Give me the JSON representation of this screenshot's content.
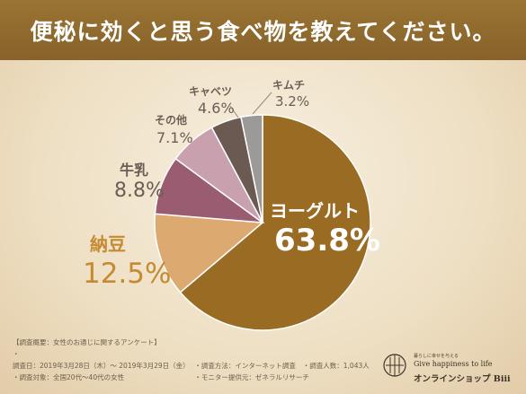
{
  "header": {
    "title": "便秘に効くと思う食べ物を教えてください。"
  },
  "chart_data": {
    "type": "pie",
    "title": "便秘に効くと思う食べ物を教えてください。",
    "slices": [
      {
        "label": "ヨーグルト",
        "value": 63.8,
        "display": "63.8%",
        "color": "#9a6b23"
      },
      {
        "label": "納豆",
        "value": 12.5,
        "display": "12.5%",
        "color": "#dcaa70"
      },
      {
        "label": "牛乳",
        "value": 8.8,
        "display": "8.8%",
        "color": "#9a5c70"
      },
      {
        "label": "その他",
        "value": 7.1,
        "display": "7.1%",
        "color": "#c9a0ae"
      },
      {
        "label": "キャベツ",
        "value": 4.6,
        "display": "4.6%",
        "color": "#6a5a52"
      },
      {
        "label": "キムチ",
        "value": 3.2,
        "display": "3.2%",
        "color": "#9c9a99"
      }
    ]
  },
  "footer": {
    "heading": "【調査概要：女性のお通じに関するアンケート】",
    "period": "調査日：2019年3月28日（木）〜 2019年3月29日（金）",
    "method": "調査方法：インターネット調査",
    "respondents": "調査人数：1,043人",
    "target": "調査対象：全国20代〜40代の女性",
    "provider": "モニター提供元：ゼネラルリサーチ"
  },
  "brand": {
    "tagline_jp": "暮らしに幸せを与える",
    "tagline": "Give happiness to life",
    "shop_name": "オンラインショップ Biii"
  }
}
